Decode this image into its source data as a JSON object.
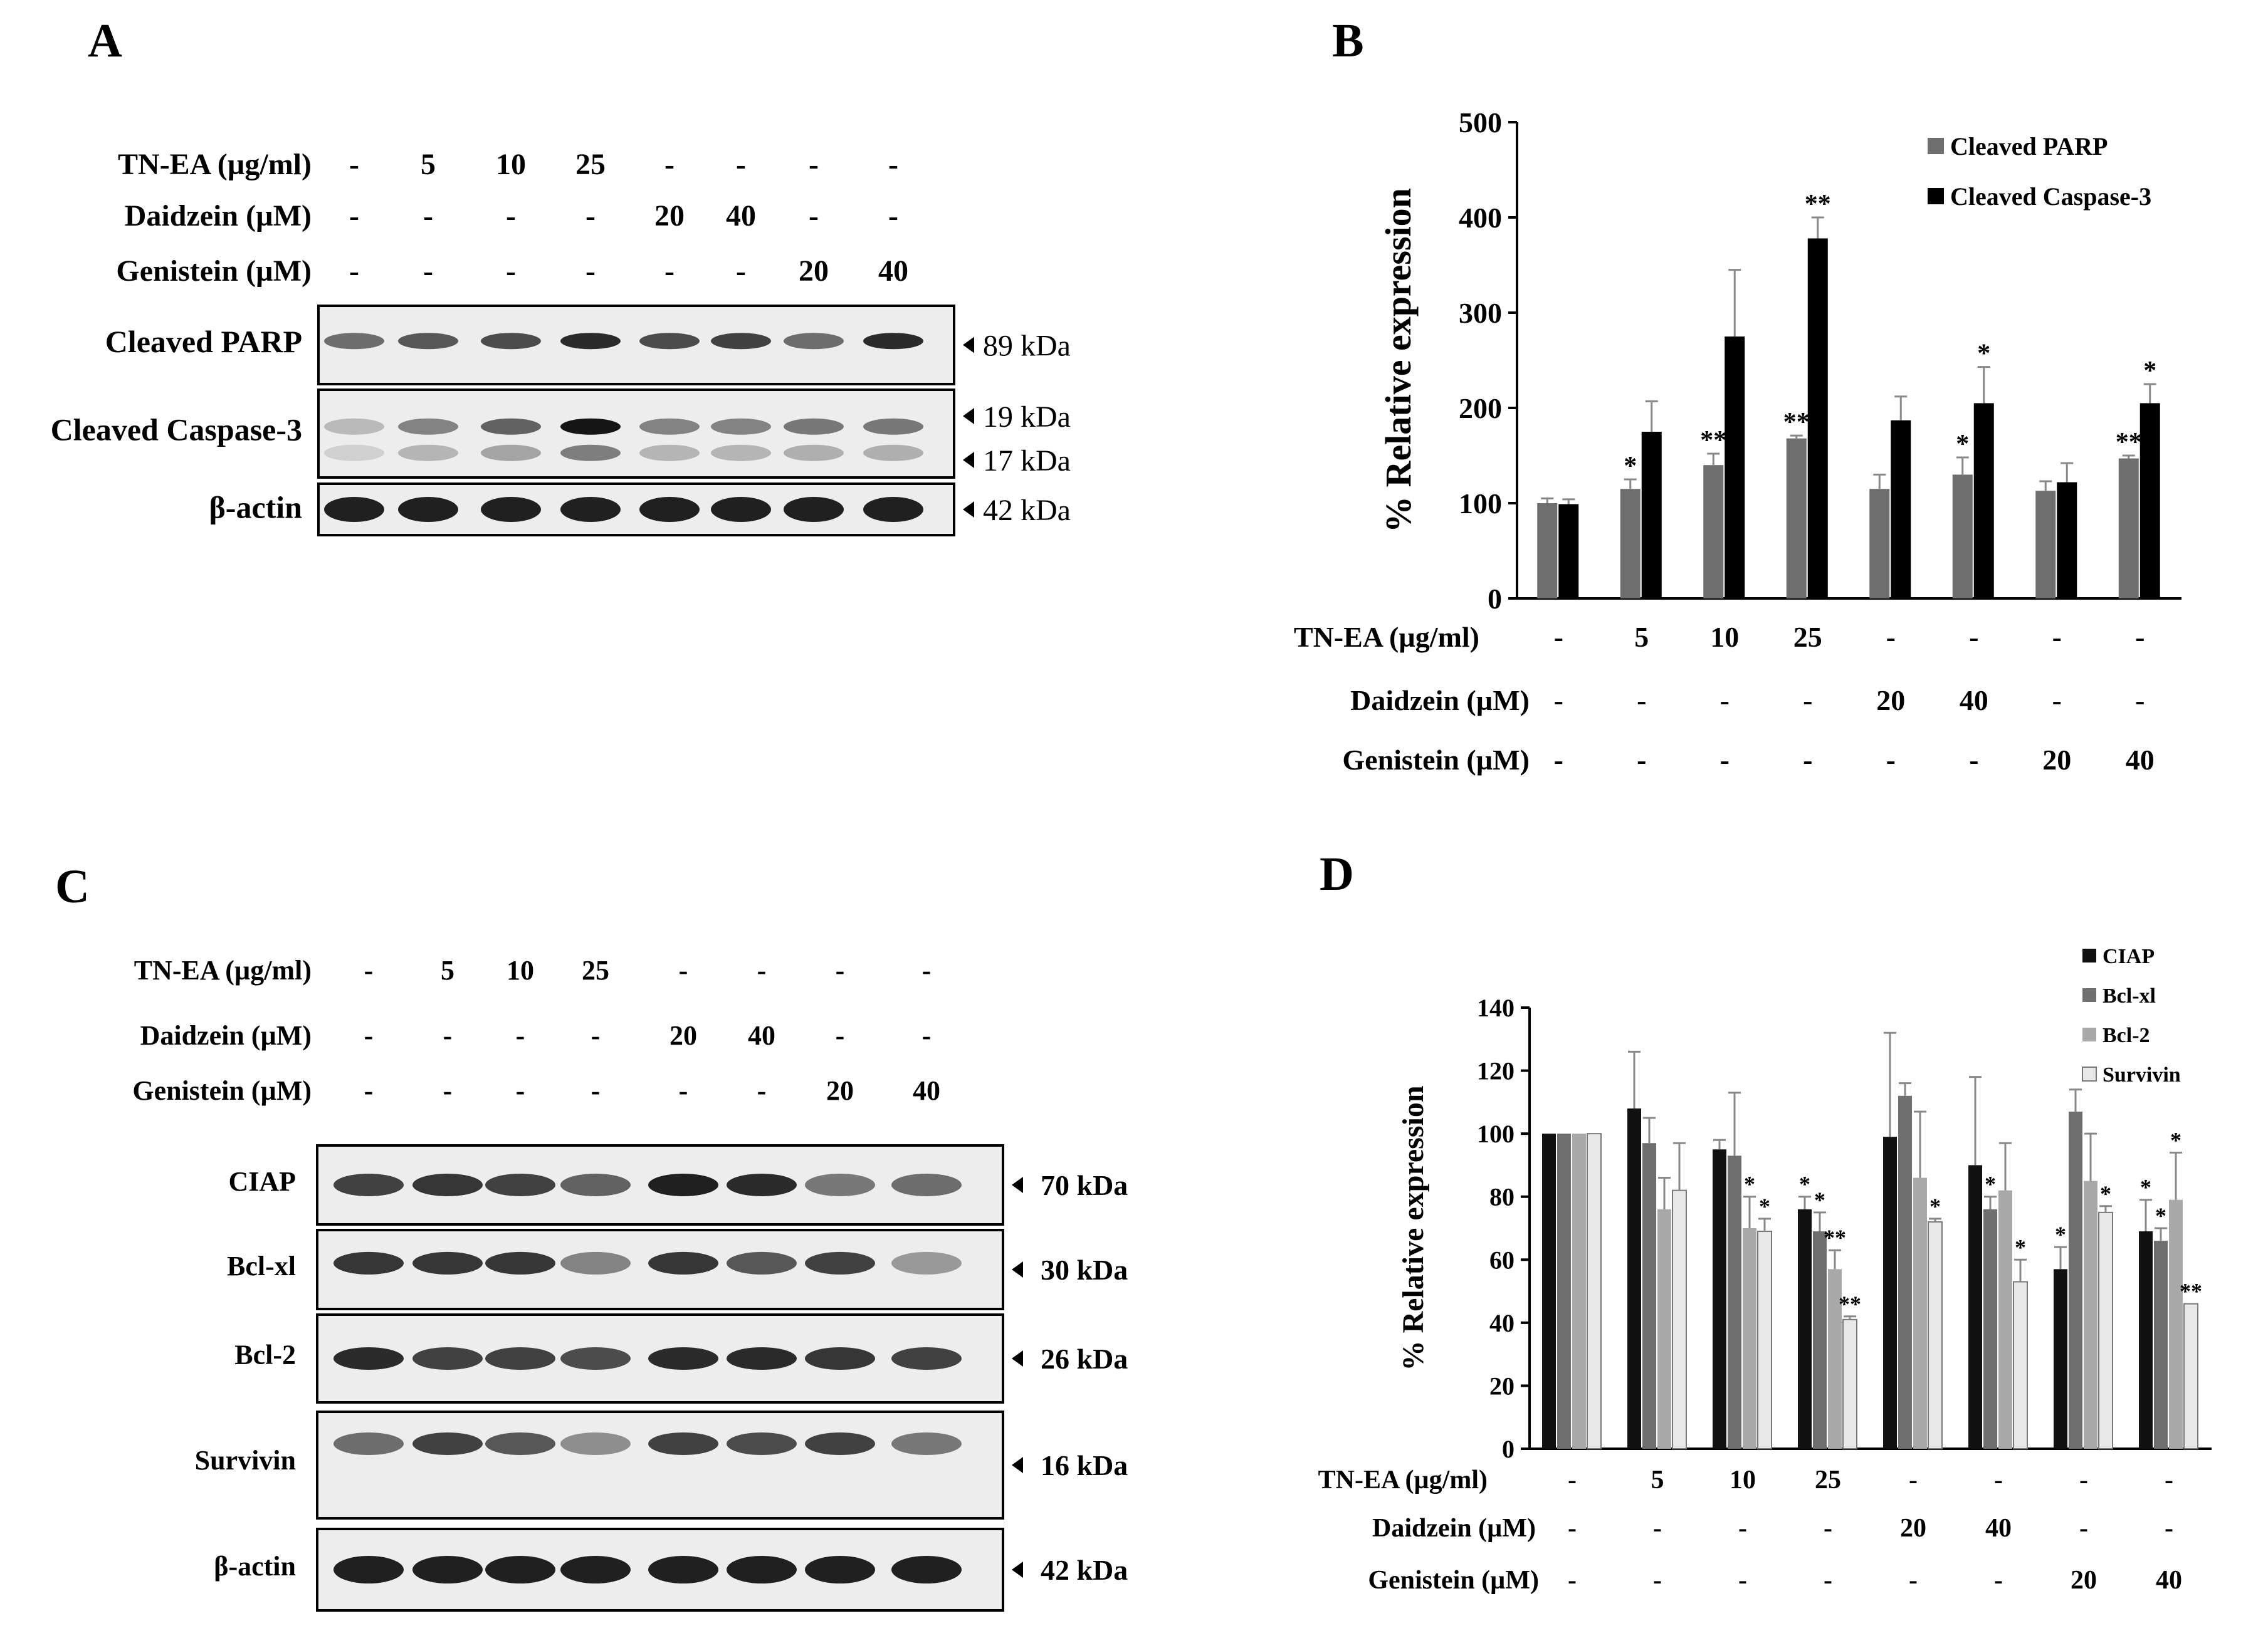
{
  "panels": {
    "A": {
      "label": "A",
      "treatments": [
        {
          "name": "TN-EA (µg/ml)",
          "values": [
            "-",
            "5",
            "10",
            "25",
            "-",
            "-",
            "-",
            "-"
          ]
        },
        {
          "name": "Daidzein (µM)",
          "values": [
            "-",
            "-",
            "-",
            "-",
            "20",
            "40",
            "-",
            "-"
          ]
        },
        {
          "name": "Genistein (µM)",
          "values": [
            "-",
            "-",
            "-",
            "-",
            "-",
            "-",
            "20",
            "40"
          ]
        }
      ],
      "blots": [
        {
          "name": "Cleaved PARP",
          "markers": [
            "89 kDa"
          ],
          "style": "bold",
          "intensity": [
            0.55,
            0.65,
            0.7,
            0.85,
            0.7,
            0.75,
            0.55,
            0.85
          ],
          "band_rows": [
            0.45
          ]
        },
        {
          "name": "Cleaved Caspase-3",
          "markers": [
            "19 kDa",
            "17 kDa"
          ],
          "style": "bold",
          "intensity": [
            0.2,
            0.45,
            0.6,
            0.95,
            0.45,
            0.45,
            0.5,
            0.5
          ],
          "band_rows": [
            0.42,
            0.72
          ]
        },
        {
          "name": "β-actin",
          "markers": [
            "42 kDa"
          ],
          "style": "bold",
          "intensity": [
            0.9,
            0.9,
            0.9,
            0.9,
            0.9,
            0.9,
            0.9,
            0.9
          ],
          "band_rows": [
            0.5
          ]
        }
      ]
    },
    "B": {
      "label": "B",
      "treatments": [
        {
          "name": "TN-EA (µg/ml)",
          "values": [
            "-",
            "5",
            "10",
            "25",
            "-",
            "-",
            "-",
            "-"
          ]
        },
        {
          "name": "Daidzein (µM)",
          "values": [
            "-",
            "-",
            "-",
            "-",
            "20",
            "40",
            "-",
            "-"
          ]
        },
        {
          "name": "Genistein (µM)",
          "values": [
            "-",
            "-",
            "-",
            "-",
            "-",
            "-",
            "20",
            "40"
          ]
        }
      ]
    },
    "C": {
      "label": "C",
      "treatments": [
        {
          "name": "TN-EA (µg/ml)",
          "values": [
            "-",
            "5",
            "10",
            "25",
            "-",
            "-",
            "-",
            "-"
          ]
        },
        {
          "name": "Daidzein (µM)",
          "values": [
            "-",
            "-",
            "-",
            "-",
            "20",
            "40",
            "-",
            "-"
          ]
        },
        {
          "name": "Genistein (µM)",
          "values": [
            "-",
            "-",
            "-",
            "-",
            "-",
            "-",
            "20",
            "40"
          ]
        }
      ],
      "blots": [
        {
          "name": "CIAP",
          "markers": [
            "70 kDa"
          ],
          "intensity": [
            0.75,
            0.8,
            0.75,
            0.6,
            0.9,
            0.85,
            0.5,
            0.55
          ],
          "band_rows": [
            0.5
          ]
        },
        {
          "name": "Bcl-xl",
          "markers": [
            "30 kDa"
          ],
          "intensity": [
            0.8,
            0.8,
            0.8,
            0.45,
            0.8,
            0.65,
            0.75,
            0.35
          ],
          "band_rows": [
            0.42
          ]
        },
        {
          "name": "Bcl-2",
          "markers": [
            "26 kDa"
          ],
          "intensity": [
            0.85,
            0.75,
            0.75,
            0.7,
            0.85,
            0.85,
            0.8,
            0.75
          ],
          "band_rows": [
            0.5
          ]
        },
        {
          "name": "Survivin",
          "markers": [
            "16 kDa"
          ],
          "intensity": [
            0.55,
            0.75,
            0.65,
            0.4,
            0.75,
            0.7,
            0.75,
            0.5
          ],
          "band_rows": [
            0.3
          ]
        },
        {
          "name": "β-actin",
          "markers": [
            "42 kDa"
          ],
          "intensity": [
            0.9,
            0.9,
            0.9,
            0.9,
            0.9,
            0.9,
            0.9,
            0.9
          ],
          "band_rows": [
            0.5
          ]
        }
      ]
    },
    "D": {
      "label": "D",
      "treatments": [
        {
          "name": "TN-EA (µg/ml)",
          "values": [
            "-",
            "5",
            "10",
            "25",
            "-",
            "-",
            "-",
            "-"
          ]
        },
        {
          "name": "Daidzein (µM)",
          "values": [
            "-",
            "-",
            "-",
            "-",
            "20",
            "40",
            "-",
            "-"
          ]
        },
        {
          "name": "Genistein (µM)",
          "values": [
            "-",
            "-",
            "-",
            "-",
            "-",
            "-",
            "20",
            "40"
          ]
        }
      ]
    }
  },
  "chart_data": [
    {
      "panel": "B",
      "type": "bar",
      "ylabel": "% Relative expression",
      "ylim": [
        0,
        500
      ],
      "yticks": [
        0,
        100,
        200,
        300,
        400,
        500
      ],
      "legend_position": "top-right",
      "categories": [
        "-",
        "5",
        "10",
        "25",
        "-",
        "-",
        "-",
        "-"
      ],
      "series": [
        {
          "name": "Cleaved PARP",
          "color": "#6e6e6e",
          "values": [
            100,
            115,
            140,
            168,
            115,
            130,
            113,
            147
          ],
          "errors": [
            5,
            10,
            12,
            3,
            15,
            18,
            10,
            3
          ],
          "significance": [
            "",
            "*",
            "**",
            "**",
            "",
            "*",
            "",
            "**"
          ]
        },
        {
          "name": "Cleaved Caspase-3",
          "color": "#000000",
          "values": [
            99,
            175,
            275,
            378,
            187,
            205,
            122,
            205
          ],
          "errors": [
            5,
            32,
            70,
            22,
            25,
            38,
            20,
            20
          ],
          "significance": [
            "",
            "",
            "",
            "**",
            "",
            "*",
            "",
            "*"
          ]
        }
      ]
    },
    {
      "panel": "D",
      "type": "bar",
      "ylabel": "% Relative expression",
      "ylim": [
        0,
        140
      ],
      "yticks": [
        0,
        20,
        40,
        60,
        80,
        100,
        120,
        140
      ],
      "legend_position": "top-right",
      "categories": [
        "-",
        "5",
        "10",
        "25",
        "-",
        "-",
        "-",
        "-"
      ],
      "series": [
        {
          "name": "CIAP",
          "color": "#111111",
          "values": [
            100,
            108,
            95,
            76,
            99,
            90,
            57,
            69
          ],
          "errors": [
            0,
            18,
            3,
            4,
            33,
            28,
            7,
            10
          ],
          "significance": [
            "",
            "",
            "",
            "*",
            "",
            "",
            "*",
            "*"
          ]
        },
        {
          "name": "Bcl-xl",
          "color": "#6f6f6f",
          "values": [
            100,
            97,
            93,
            69,
            112,
            76,
            107,
            66
          ],
          "errors": [
            0,
            8,
            20,
            6,
            4,
            4,
            7,
            4
          ],
          "significance": [
            "",
            "",
            "",
            "*",
            "",
            "*",
            "",
            "*"
          ]
        },
        {
          "name": "Bcl-2",
          "color": "#a9a9a9",
          "values": [
            100,
            76,
            70,
            57,
            86,
            82,
            85,
            79
          ],
          "errors": [
            0,
            10,
            10,
            6,
            21,
            15,
            15,
            15
          ],
          "significance": [
            "",
            "",
            "*",
            "**",
            "",
            "",
            "",
            "*"
          ]
        },
        {
          "name": "Survivin",
          "color": "#e8e8e8",
          "values": [
            100,
            82,
            69,
            41,
            72,
            53,
            75,
            46
          ],
          "errors": [
            0,
            15,
            4,
            1,
            1,
            7,
            2,
            0
          ],
          "significance": [
            "",
            "",
            "*",
            "**",
            "*",
            "*",
            "*",
            "**"
          ]
        }
      ]
    }
  ]
}
